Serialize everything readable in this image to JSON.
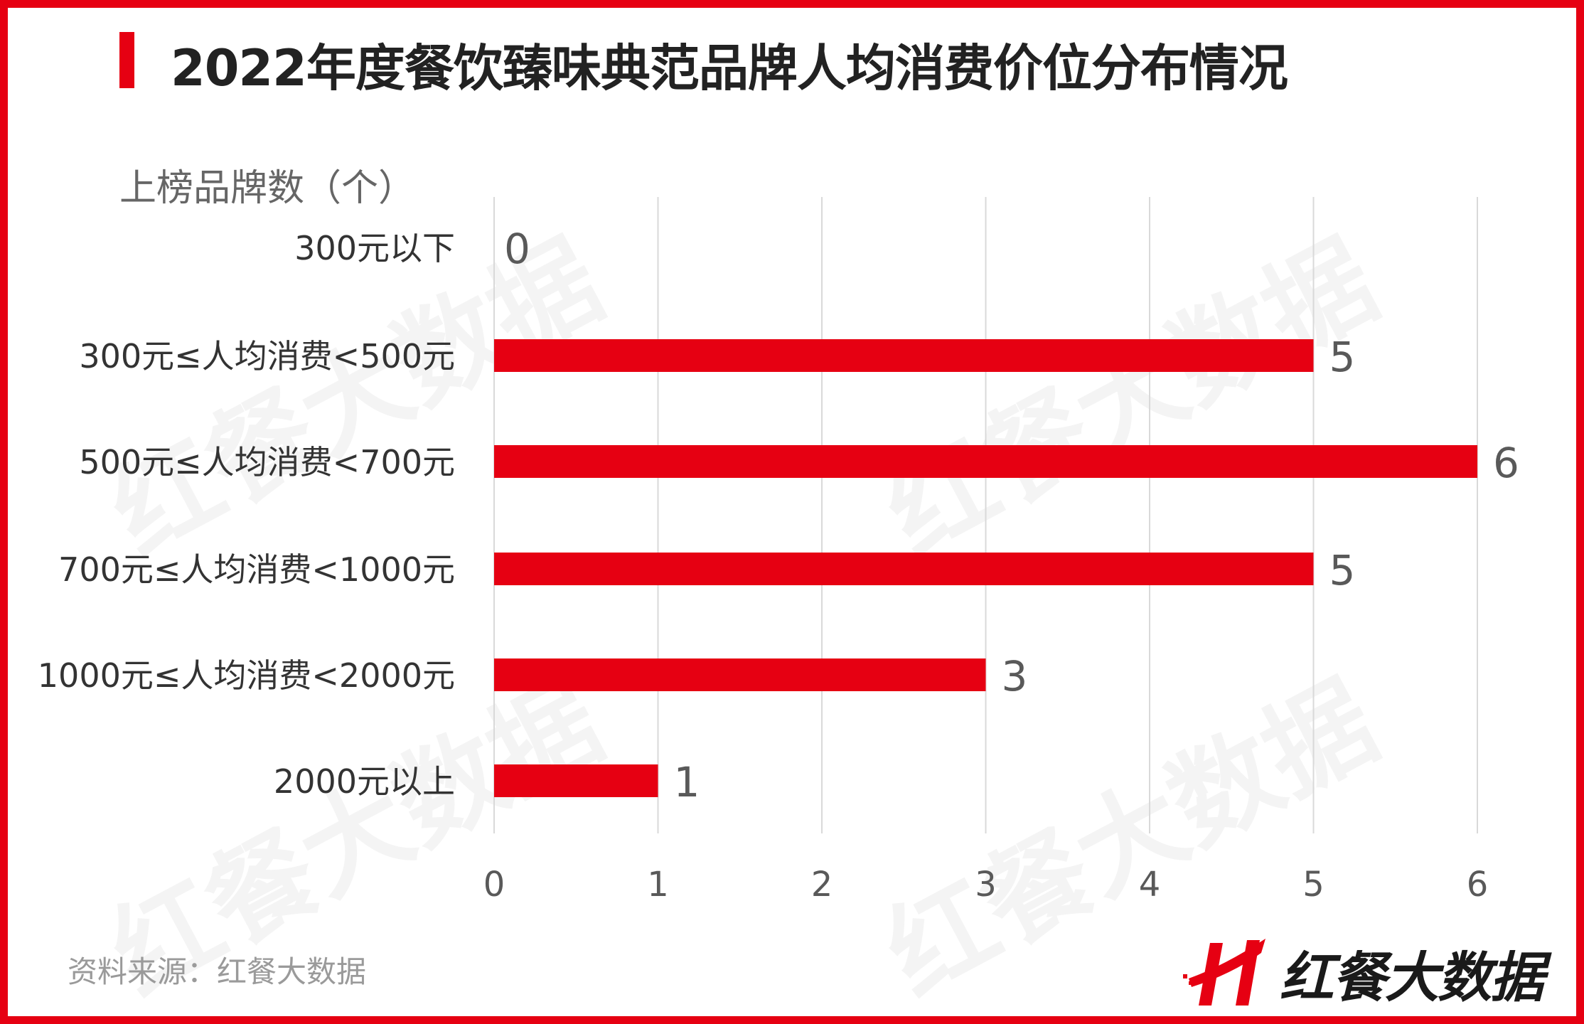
{
  "title": "2022年度餐饮臻味典范品牌人均消费价位分布情况",
  "source": "资料来源：红餐大数据",
  "logo_text": "红餐大数据",
  "watermark": "红餐大数据",
  "colors": {
    "bar": "#e60012",
    "accent": "#e60012",
    "grid": "#d9d9d9",
    "label": "#595959"
  },
  "chart_data": {
    "type": "bar",
    "orientation": "horizontal",
    "title": "2022年度餐饮臻味典范品牌人均消费价位分布情况",
    "xlabel": "",
    "ylabel": "上榜品牌数（个）",
    "categories": [
      "300元以下",
      "300元≤人均消费<500元",
      "500元≤人均消费<700元",
      "700元≤人均消费<1000元",
      "1000元≤人均消费<2000元",
      "2000元以上"
    ],
    "values": [
      0,
      5,
      6,
      5,
      3,
      1
    ],
    "xlim": [
      0,
      6
    ],
    "xticks": [
      "0",
      "1",
      "2",
      "3",
      "4",
      "5",
      "6"
    ],
    "grid": "vertical",
    "data_labels": true,
    "legend": "none"
  }
}
